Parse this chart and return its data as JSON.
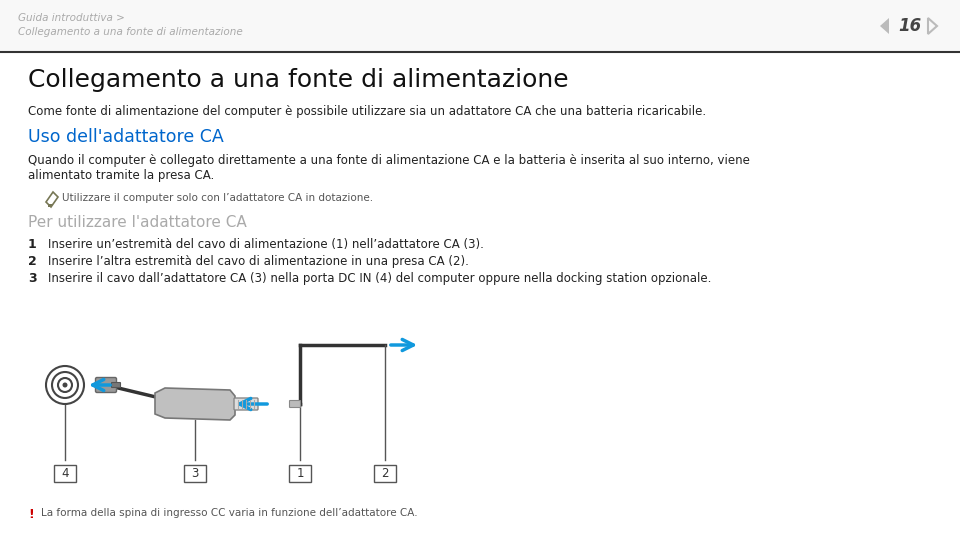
{
  "bg_color": "#ffffff",
  "header_bg": "#ffffff",
  "breadcrumb_line1": "Guida introduttiva >",
  "breadcrumb_line2": "Collegamento a una fonte di alimentazione",
  "page_number": "16",
  "main_title": "Collegamento a una fonte di alimentazione",
  "intro_text": "Come fonte di alimentazione del computer è possibile utilizzare sia un adattatore CA che una batteria ricaricabile.",
  "section_title": "Uso dell'adattatore CA",
  "section_title_color": "#0066cc",
  "body_text_line1": "Quando il computer è collegato direttamente a una fonte di alimentazione CA e la batteria è inserita al suo interno, viene",
  "body_text_line2": "alimentato tramite la presa CA.",
  "note_text": "Utilizzare il computer solo con l’adattatore CA in dotazione.",
  "subsection_title": "Per utilizzare l'adattatore CA",
  "subsection_title_color": "#aaaaaa",
  "step1": "Inserire un’estremità del cavo di alimentazione (1) nell’adattatore CA (3).",
  "step2": "Inserire l’altra estremità del cavo di alimentazione in una presa CA (2).",
  "step3": "Inserire il cavo dall’adattatore CA (3) nella porta DC IN (4) del computer oppure nella docking station opzionale.",
  "warning_text": "La forma della spina di ingresso CC varia in funzione dell’adattatore CA.",
  "warning_color": "#cc0000",
  "text_color": "#222222",
  "gray_color": "#555555",
  "light_gray": "#aaaaaa",
  "arrow_blue": "#1199dd",
  "header_sep_color": "#333333",
  "header_text_color": "#aaaaaa",
  "note_icon_color": "#777755"
}
